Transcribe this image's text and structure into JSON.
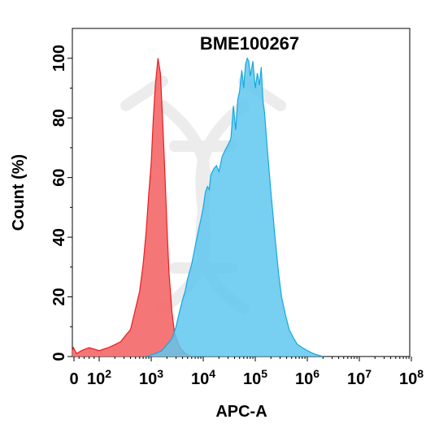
{
  "chart_data": {
    "type": "area",
    "title": "BME100267",
    "xlabel": "APC-A",
    "ylabel": "Count  (%)",
    "x_scale": "biexponential",
    "xlim": [
      -30,
      100000000
    ],
    "ylim": [
      0,
      110
    ],
    "x_ticks": [
      {
        "value": 0,
        "label": "0",
        "exp": ""
      },
      {
        "value": 100,
        "label": "10",
        "exp": "2"
      },
      {
        "value": 1000,
        "label": "10",
        "exp": "3"
      },
      {
        "value": 10000,
        "label": "10",
        "exp": "4"
      },
      {
        "value": 100000,
        "label": "10",
        "exp": "5"
      },
      {
        "value": 1000000,
        "label": "10",
        "exp": "6"
      },
      {
        "value": 10000000,
        "label": "10",
        "exp": "7"
      },
      {
        "value": 100000000,
        "label": "10",
        "exp": "8"
      }
    ],
    "y_ticks": [
      "0",
      "20",
      "40",
      "60",
      "80",
      "100"
    ],
    "grid": false,
    "series": [
      {
        "color": "#f46f6f",
        "stroke": "#ea1c24",
        "x": [
          -30,
          -10,
          10,
          30,
          60,
          100,
          150,
          200,
          260,
          320,
          400,
          500,
          600,
          700,
          800,
          900,
          1000,
          1100,
          1200,
          1350,
          1500,
          1650,
          1800,
          2000,
          2200,
          2500,
          2800,
          3200,
          3600,
          4000,
          4500,
          5000,
          6000
        ],
        "values": [
          2,
          3,
          1,
          2,
          3,
          2,
          3,
          4,
          5,
          7,
          9,
          16,
          22,
          31,
          42,
          55,
          65,
          80,
          91,
          100,
          95,
          80,
          65,
          44,
          28,
          15,
          8,
          5,
          3,
          2,
          1,
          0.5,
          0
        ]
      },
      {
        "color": "#5fc7ef",
        "stroke": "#15a8e0",
        "x": [
          800,
          1200,
          1600,
          2000,
          2500,
          3000,
          3500,
          4000,
          4500,
          5000,
          6000,
          7000,
          8000,
          9000,
          10000,
          11000,
          12000,
          13000,
          14000,
          16000,
          18000,
          20000,
          23000,
          26000,
          30000,
          34000,
          38000,
          42000,
          46000,
          50000,
          55000,
          60000,
          65000,
          70000,
          75000,
          80000,
          90000,
          100000,
          110000,
          120000,
          130000,
          140000,
          150000,
          170000,
          200000,
          240000,
          280000,
          320000,
          380000,
          450000,
          550000,
          650000,
          800000,
          1000000,
          1300000,
          1600000,
          2000000
        ],
        "values": [
          0,
          1,
          2,
          4,
          6,
          10,
          15,
          19,
          22,
          26,
          31,
          37,
          42,
          46,
          50,
          55,
          57,
          56,
          61,
          63,
          64,
          62,
          67,
          69,
          71,
          73,
          84,
          76,
          86,
          89,
          96,
          90,
          98,
          100,
          99,
          94,
          99,
          90,
          95,
          91,
          97,
          86,
          82,
          70,
          55,
          40,
          28,
          20,
          14,
          9,
          6,
          4,
          3,
          2,
          1,
          0.5,
          0
        ]
      }
    ]
  }
}
